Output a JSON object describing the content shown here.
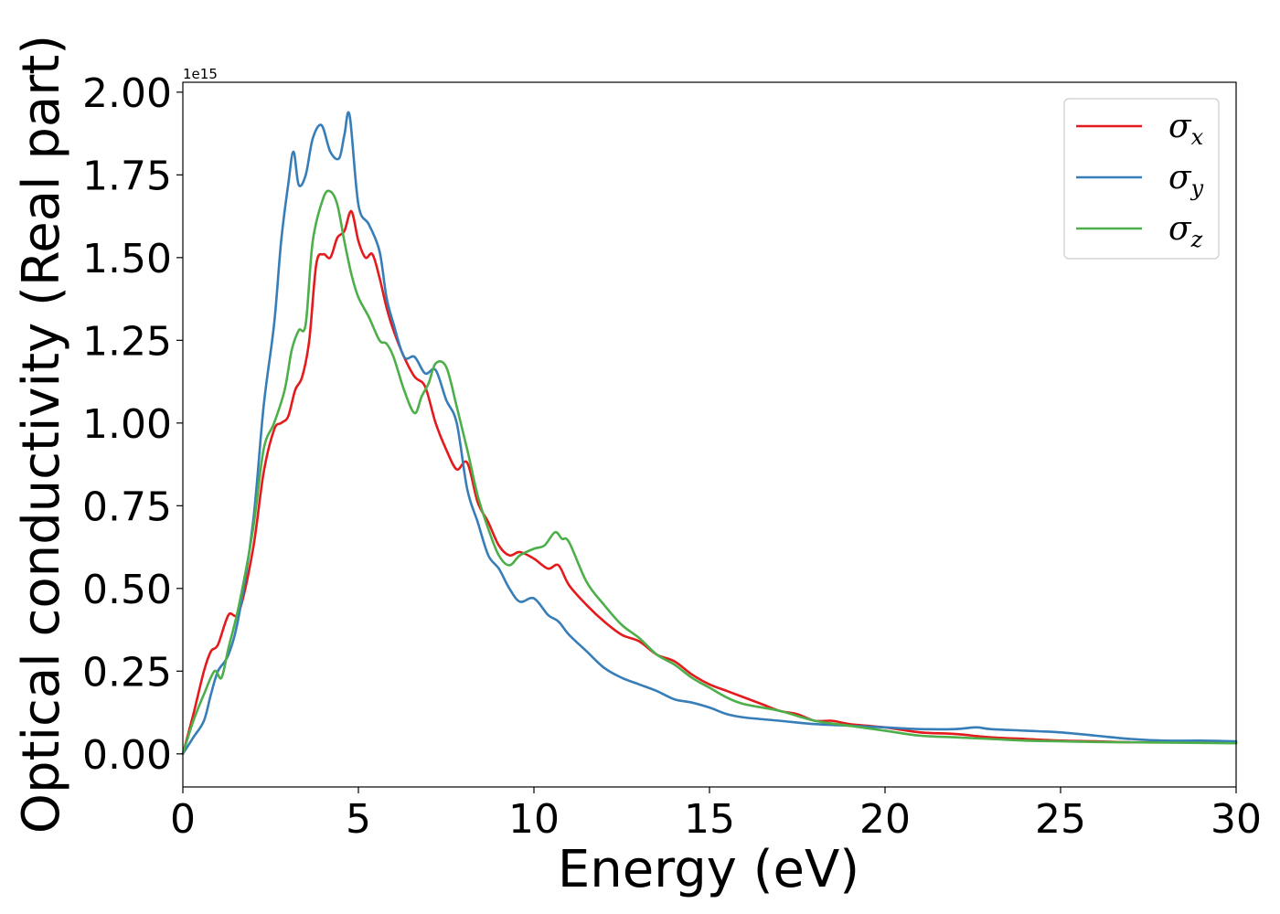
{
  "chart_data": {
    "type": "line",
    "xlabel": "Energy (eV)",
    "ylabel": "Optical conductivity (Real part)",
    "y_offset_label": "1e15",
    "y_scale_note": "values in units of 1e15",
    "xlim": [
      0,
      30
    ],
    "ylim": [
      -0.1,
      2.03
    ],
    "x_ticks": [
      0,
      5,
      10,
      15,
      20,
      25,
      30
    ],
    "x_tick_labels": [
      "0",
      "5",
      "10",
      "15",
      "20",
      "25",
      "30"
    ],
    "y_ticks": [
      0.0,
      0.25,
      0.5,
      0.75,
      1.0,
      1.25,
      1.5,
      1.75,
      2.0
    ],
    "y_tick_labels": [
      "0.00",
      "0.25",
      "0.50",
      "0.75",
      "1.00",
      "1.25",
      "1.50",
      "1.75",
      "2.00"
    ],
    "grid": false,
    "legend_position": "top-right",
    "series": [
      {
        "name": "σx",
        "symbol": "σ",
        "subscript": "x",
        "color": "#e41a1c",
        "x": [
          0,
          0.3,
          0.6,
          0.8,
          1.0,
          1.3,
          1.6,
          2.0,
          2.3,
          2.6,
          2.8,
          3.0,
          3.2,
          3.4,
          3.6,
          3.8,
          4.0,
          4.2,
          4.4,
          4.6,
          4.8,
          5.0,
          5.2,
          5.4,
          5.6,
          5.8,
          6.0,
          6.3,
          6.6,
          6.9,
          7.2,
          7.5,
          7.8,
          8.1,
          8.4,
          8.7,
          9.0,
          9.3,
          9.6,
          10.0,
          10.4,
          10.7,
          11.0,
          11.5,
          12.0,
          12.5,
          13.0,
          13.5,
          14.0,
          14.5,
          15.0,
          15.5,
          16.0,
          16.5,
          17.0,
          17.5,
          18.0,
          18.5,
          19.0,
          20.0,
          21.0,
          22.0,
          23.0,
          24.0,
          25.0,
          26.0,
          27.0,
          28.0,
          29.0,
          30.0
        ],
        "values": [
          0.0,
          0.12,
          0.25,
          0.31,
          0.33,
          0.42,
          0.43,
          0.62,
          0.85,
          0.98,
          1.0,
          1.02,
          1.1,
          1.14,
          1.25,
          1.48,
          1.51,
          1.5,
          1.56,
          1.58,
          1.64,
          1.55,
          1.5,
          1.51,
          1.44,
          1.35,
          1.28,
          1.2,
          1.14,
          1.11,
          1.0,
          0.92,
          0.86,
          0.88,
          0.76,
          0.7,
          0.63,
          0.6,
          0.61,
          0.59,
          0.56,
          0.57,
          0.51,
          0.45,
          0.4,
          0.36,
          0.34,
          0.3,
          0.28,
          0.24,
          0.21,
          0.19,
          0.17,
          0.15,
          0.13,
          0.12,
          0.1,
          0.1,
          0.09,
          0.08,
          0.065,
          0.06,
          0.05,
          0.045,
          0.04,
          0.038,
          0.035,
          0.035,
          0.034,
          0.033
        ]
      },
      {
        "name": "σy",
        "symbol": "σ",
        "subscript": "y",
        "color": "#377eb8",
        "x": [
          0,
          0.3,
          0.6,
          0.8,
          1.0,
          1.3,
          1.6,
          2.0,
          2.3,
          2.6,
          2.8,
          3.0,
          3.15,
          3.3,
          3.5,
          3.7,
          3.95,
          4.2,
          4.45,
          4.6,
          4.75,
          5.0,
          5.3,
          5.6,
          5.8,
          6.0,
          6.3,
          6.6,
          6.9,
          7.2,
          7.5,
          7.8,
          8.1,
          8.4,
          8.7,
          9.0,
          9.3,
          9.6,
          10.0,
          10.4,
          10.7,
          11.0,
          11.5,
          12.0,
          12.5,
          13.0,
          13.5,
          14.0,
          14.5,
          15.0,
          15.5,
          16.0,
          17.0,
          18.0,
          19.0,
          20.0,
          21.0,
          22.0,
          22.6,
          23.0,
          24.0,
          25.0,
          26.0,
          27.0,
          28.0,
          29.0,
          30.0
        ],
        "values": [
          0.0,
          0.05,
          0.1,
          0.18,
          0.25,
          0.3,
          0.42,
          0.7,
          1.05,
          1.3,
          1.55,
          1.72,
          1.82,
          1.72,
          1.75,
          1.86,
          1.9,
          1.82,
          1.8,
          1.87,
          1.93,
          1.66,
          1.6,
          1.52,
          1.38,
          1.3,
          1.2,
          1.2,
          1.15,
          1.16,
          1.07,
          1.0,
          0.8,
          0.7,
          0.6,
          0.56,
          0.5,
          0.46,
          0.47,
          0.42,
          0.4,
          0.36,
          0.31,
          0.26,
          0.23,
          0.21,
          0.19,
          0.165,
          0.155,
          0.14,
          0.12,
          0.11,
          0.1,
          0.09,
          0.085,
          0.08,
          0.075,
          0.075,
          0.08,
          0.075,
          0.07,
          0.065,
          0.055,
          0.045,
          0.04,
          0.04,
          0.038
        ]
      },
      {
        "name": "σz",
        "symbol": "σ",
        "subscript": "z",
        "color": "#4daf4a",
        "x": [
          0,
          0.3,
          0.6,
          0.9,
          1.1,
          1.3,
          1.6,
          2.0,
          2.3,
          2.6,
          2.9,
          3.1,
          3.3,
          3.5,
          3.7,
          4.0,
          4.2,
          4.4,
          4.6,
          4.8,
          5.0,
          5.3,
          5.6,
          5.8,
          6.0,
          6.3,
          6.6,
          6.8,
          7.0,
          7.2,
          7.5,
          7.8,
          8.1,
          8.4,
          8.7,
          9.0,
          9.3,
          9.6,
          10.0,
          10.3,
          10.6,
          10.8,
          11.0,
          11.5,
          12.0,
          12.5,
          13.0,
          13.5,
          14.0,
          14.5,
          15.0,
          15.5,
          16.0,
          17.0,
          18.0,
          19.0,
          20.0,
          21.0,
          22.0,
          23.0,
          24.0,
          25.0,
          26.0,
          27.0,
          28.0,
          29.0,
          30.0
        ],
        "values": [
          0.0,
          0.1,
          0.18,
          0.25,
          0.23,
          0.32,
          0.45,
          0.68,
          0.92,
          1.0,
          1.1,
          1.22,
          1.28,
          1.3,
          1.55,
          1.68,
          1.7,
          1.66,
          1.55,
          1.45,
          1.38,
          1.32,
          1.25,
          1.24,
          1.2,
          1.1,
          1.03,
          1.08,
          1.12,
          1.18,
          1.17,
          1.05,
          0.92,
          0.78,
          0.68,
          0.6,
          0.57,
          0.6,
          0.62,
          0.63,
          0.67,
          0.65,
          0.64,
          0.52,
          0.45,
          0.39,
          0.35,
          0.3,
          0.27,
          0.23,
          0.2,
          0.17,
          0.15,
          0.13,
          0.1,
          0.085,
          0.07,
          0.055,
          0.05,
          0.045,
          0.04,
          0.038,
          0.036,
          0.035,
          0.034,
          0.033,
          0.032
        ]
      }
    ]
  }
}
